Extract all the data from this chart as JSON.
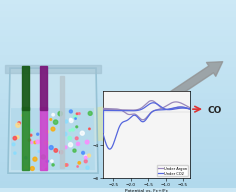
{
  "bg_top": "#cce8f5",
  "bg_bottom": "#b0d8ec",
  "beaker_fill": "#c8e4f0",
  "beaker_edge": "#88b8cc",
  "liquid_color": "#a8d4e8",
  "electrode1_top": "#1a5c1a",
  "electrode1_bot": "#2e8b2e",
  "electrode2_top": "#7b1a7b",
  "electrode2_bot": "#cc44cc",
  "electrode3_color": "#b8c8d0",
  "dot_colors": [
    "#ff4444",
    "#4488ff",
    "#44bb44",
    "#ffaa00",
    "#ff88ff",
    "#ffffff",
    "#88ddff",
    "#ffdd88",
    "#ff6688",
    "#88ffcc"
  ],
  "cone_color": "#f0e870",
  "cv_bg": "#f5f5f5",
  "argon_color": "#9988bb",
  "co2_color_cv": "#5566dd",
  "cv_xlabel": "Potential vs. Fc+/Fc",
  "legend_argon": "Under Argon",
  "legend_co2": "Under CO2",
  "arrow_gray": "#909090",
  "co2_text_color": "#cc2222",
  "co_text_color": "#222222",
  "arrow_red": "#dd3333"
}
